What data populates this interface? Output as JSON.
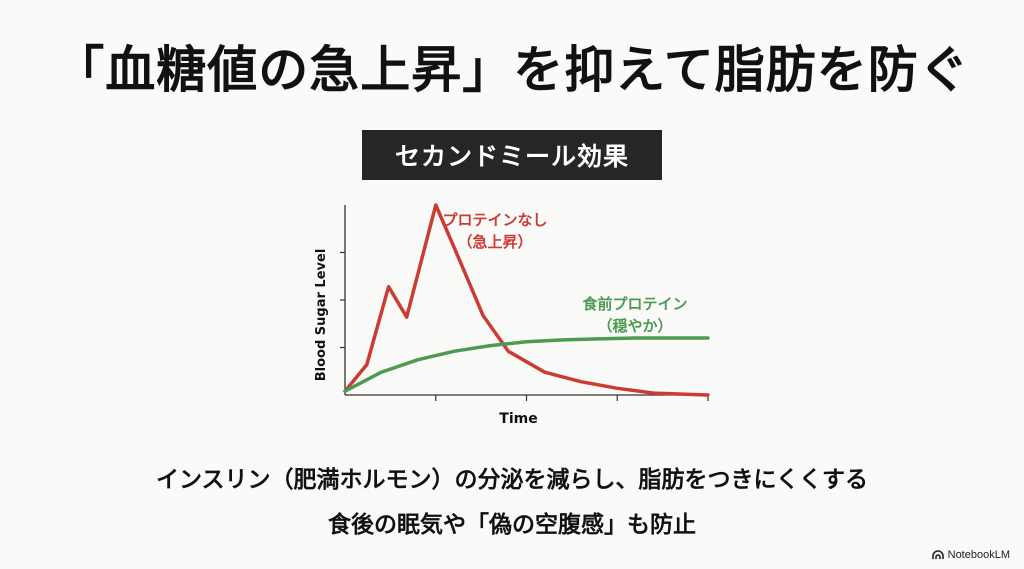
{
  "slide": {
    "title": "「血糖値の急上昇」を抑えて脂肪を防ぐ",
    "badge": "セカンドミール効果",
    "caption_line1": "インスリン（肥満ホルモン）の分泌を減らし、脂肪をつきにくくする",
    "caption_line2": "食後の眠気や「偽の空腹感」も防止",
    "logo_text": "NotebookLM",
    "logo_icon": "notebooklm-logo-icon"
  },
  "chart_data": {
    "type": "line",
    "title": "",
    "xlabel": "Time",
    "ylabel": "Blood Sugar Level",
    "xlim": [
      0,
      10
    ],
    "ylim": [
      0,
      10
    ],
    "x_tick_count": 4,
    "y_tick_count": 4,
    "tick_labels_shown": false,
    "grid": false,
    "legend": "none",
    "annotations": [
      {
        "series": "red",
        "line1": "プロテインなし",
        "line2": "（急上昇）"
      },
      {
        "series": "green",
        "line1": "食前プロテイン",
        "line2": "（穏やか）"
      }
    ],
    "series": [
      {
        "color": "#cc3c33",
        "x": [
          0,
          0.6,
          1.2,
          1.7,
          2.5,
          3.2,
          3.8,
          4.5,
          5.5,
          6.5,
          7.5,
          8.5,
          10
        ],
        "y": [
          0.2,
          1.6,
          5.7,
          4.1,
          10.0,
          6.9,
          4.2,
          2.3,
          1.2,
          0.7,
          0.35,
          0.1,
          0.0
        ]
      },
      {
        "color": "#4d9b53",
        "x": [
          0,
          1,
          2,
          3,
          4,
          5,
          6,
          7,
          8,
          9,
          10
        ],
        "y": [
          0.2,
          1.2,
          1.85,
          2.3,
          2.6,
          2.8,
          2.9,
          2.95,
          3.0,
          3.0,
          3.0
        ]
      }
    ]
  }
}
